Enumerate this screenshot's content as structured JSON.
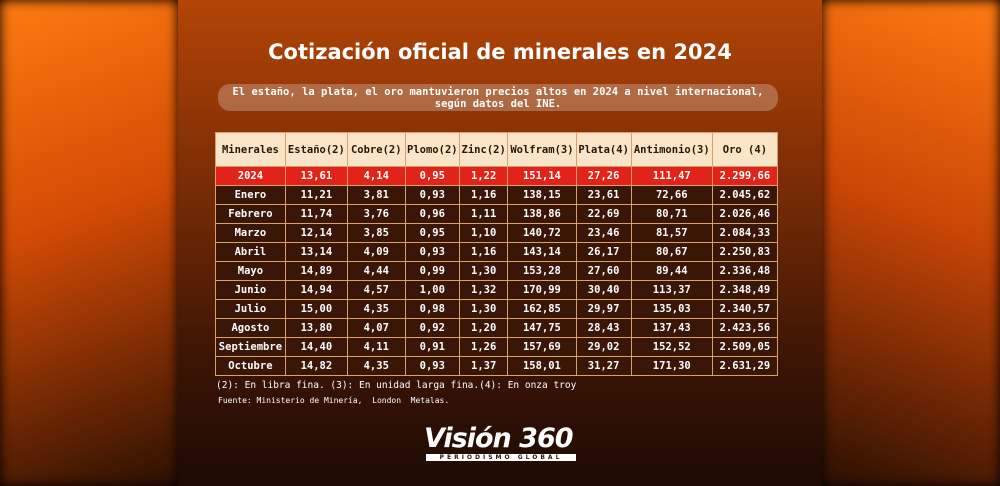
{
  "header": {
    "title": "Cotización oficial de minerales en 2024",
    "subtitle": "El estaño, la plata, el oro mantuvieron precios altos en 2024 a nivel internacional, según datos del INE."
  },
  "table": {
    "headers": [
      "Minerales",
      "Estaño(2)",
      "Cobre(2)",
      "Plomo(2)",
      "Zinc(2)",
      "Wolfram(3)",
      "Plata(4)",
      "Antimonio(3)",
      "Oro (4)"
    ],
    "rows": [
      [
        "2024",
        "13,61",
        "4,14",
        "0,95",
        "1,22",
        "151,14",
        "27,26",
        "111,47",
        "2.299,66"
      ],
      [
        "Enero",
        "11,21",
        "3,81",
        "0,93",
        "1,16",
        "138,15",
        "23,61",
        "72,66",
        "2.045,62"
      ],
      [
        "Febrero",
        "11,74",
        "3,76",
        "0,96",
        "1,11",
        "138,86",
        "22,69",
        "80,71",
        "2.026,46"
      ],
      [
        "Marzo",
        "12,14",
        "3,85",
        "0,95",
        "1,10",
        "140,72",
        "23,46",
        "81,57",
        "2.084,33"
      ],
      [
        "Abril",
        "13,14",
        "4,09",
        "0,93",
        "1,16",
        "143,14",
        "26,17",
        "80,67",
        "2.250,83"
      ],
      [
        "Mayo",
        "14,89",
        "4,44",
        "0,99",
        "1,30",
        "153,28",
        "27,60",
        "89,44",
        "2.336,48"
      ],
      [
        "Junio",
        "14,94",
        "4,57",
        "1,00",
        "1,32",
        "170,99",
        "30,40",
        "113,37",
        "2.348,49"
      ],
      [
        "Julio",
        "15,00",
        "4,35",
        "0,98",
        "1,30",
        "162,85",
        "29,97",
        "135,03",
        "2.340,57"
      ],
      [
        "Agosto",
        "13,80",
        "4,07",
        "0,92",
        "1,20",
        "147,75",
        "28,43",
        "137,43",
        "2.423,56"
      ],
      [
        "Septiembre",
        "14,40",
        "4,11",
        "0,91",
        "1,26",
        "157,69",
        "29,02",
        "152,52",
        "2.509,05"
      ],
      [
        "Octubre",
        "14,82",
        "4,35",
        "0,93",
        "1,37",
        "158,01",
        "31,27",
        "171,30",
        "2.631,29"
      ]
    ]
  },
  "footer": {
    "notes": "(2): En libra fina. (3): En unidad larga fina.(4): En onza troy",
    "source": "Fuente: Ministerio de Minería,  London  Metalas."
  },
  "logo": {
    "name": "Visión 360",
    "tagline": "PERIODISMO GLOBAL"
  }
}
